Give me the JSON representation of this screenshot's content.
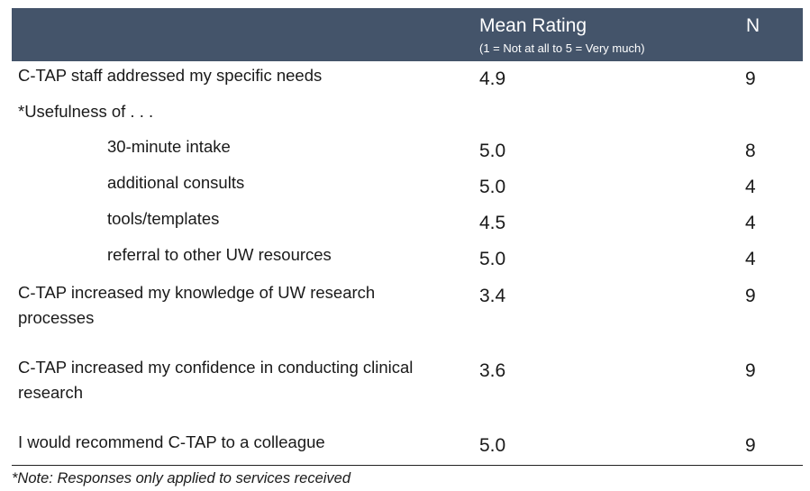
{
  "header": {
    "col_mean": "Mean Rating",
    "col_mean_sub": "(1 = Not at all to 5 = Very much)",
    "col_n": "N"
  },
  "rows": [
    {
      "label": "C-TAP staff addressed my specific needs",
      "mean": "4.9",
      "n": "9"
    },
    {
      "label": "*Usefulness of . . .",
      "mean": "",
      "n": ""
    },
    {
      "label": "30-minute intake",
      "mean": "5.0",
      "n": "8"
    },
    {
      "label": "additional consults",
      "mean": "5.0",
      "n": "4"
    },
    {
      "label": "tools/templates",
      "mean": "4.5",
      "n": "4"
    },
    {
      "label": "referral to other UW resources",
      "mean": "5.0",
      "n": "4"
    },
    {
      "label": "C-TAP increased my knowledge of UW research processes",
      "mean": "3.4",
      "n": "9"
    },
    {
      "label": "C-TAP increased my confidence in conducting clinical research",
      "mean": "3.6",
      "n": "9"
    },
    {
      "label": "I would recommend C-TAP to a colleague",
      "mean": "5.0",
      "n": "9"
    }
  ],
  "footnote": "*Note: Responses only applied to services received"
}
